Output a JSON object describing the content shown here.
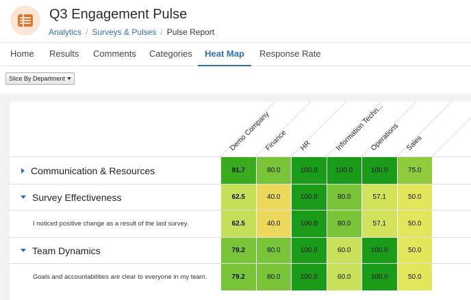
{
  "header": {
    "title": "Q3 Engagement Pulse",
    "breadcrumb": [
      "Analytics",
      "Surveys & Pulses",
      "Pulse Report"
    ],
    "icon": "list-icon",
    "icon_color": "#e0762d"
  },
  "tabs": [
    {
      "label": "Home",
      "active": false
    },
    {
      "label": "Results",
      "active": false
    },
    {
      "label": "Comments",
      "active": false
    },
    {
      "label": "Categories",
      "active": false
    },
    {
      "label": "Heat Map",
      "active": true
    },
    {
      "label": "Response Rate",
      "active": false
    }
  ],
  "toolbar": {
    "slice_label": "Slice By Department"
  },
  "heatmap": {
    "columns": [
      "Demo Company",
      "Finance",
      "HR",
      "Information Techn...",
      "Operations",
      "Sales"
    ],
    "rows": [
      {
        "label": "Communication & Resources",
        "type": "group",
        "expand": "collapsed",
        "values": [
          "91.7",
          "80.0",
          "100.0",
          "100.0",
          "100.0",
          "75.0"
        ]
      },
      {
        "label": "Survey Effectiveness",
        "type": "group",
        "expand": "expanded",
        "values": [
          "62.5",
          "40.0",
          "100.0",
          "80.0",
          "57.1",
          "50.0"
        ]
      },
      {
        "label": "I noticed positive change as a result of the last survey.",
        "type": "question",
        "values": [
          "62.5",
          "40.0",
          "100.0",
          "80.0",
          "57.1",
          "50.0"
        ]
      },
      {
        "label": "Team Dynamics",
        "type": "group",
        "expand": "expanded",
        "values": [
          "79.2",
          "80.0",
          "100.0",
          "60.0",
          "100.0",
          "50.0"
        ]
      },
      {
        "label": "Goals and accountabilities are clear to everyone in my team.",
        "type": "question",
        "values": [
          "79.2",
          "80.0",
          "100.0",
          "60.0",
          "100.0",
          "50.0"
        ]
      }
    ],
    "colors": {
      "100": "#1a9b1a",
      "91.7": "#3aab1f",
      "80": "#7ac43a",
      "79.2": "#7ac43a",
      "75": "#8fcb3c",
      "62.5": "#c6df58",
      "60": "#c8e05a",
      "57.1": "#d2e25a",
      "50": "#e2e65a",
      "40": "#ecd85a"
    }
  }
}
